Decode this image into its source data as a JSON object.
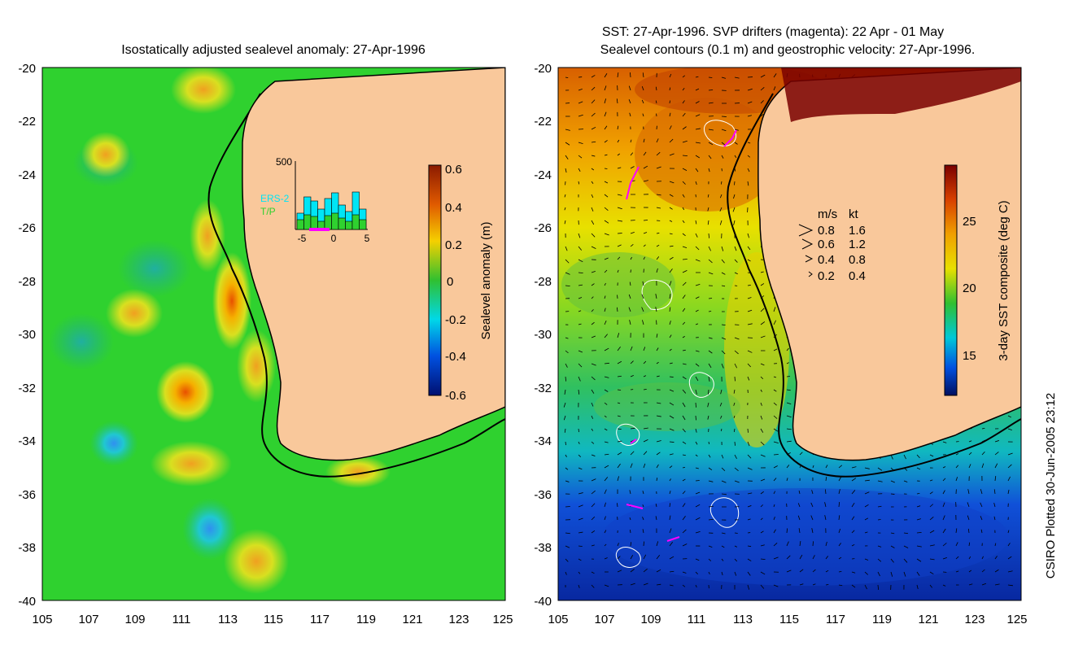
{
  "left_panel": {
    "title": "Isostatically adjusted sealevel anomaly: 27-Apr-1996",
    "colorbar": {
      "label": "Sealevel anomaly (m)",
      "ticks": [
        "0.6",
        "0.4",
        "0.2",
        "0",
        "-0.2",
        "-0.4",
        "-0.6"
      ]
    },
    "inset": {
      "y_max_label": "500",
      "x_ticks": [
        "-5",
        "0",
        "5"
      ],
      "legend": [
        {
          "label": "ERS-2",
          "color": "#00e5f5"
        },
        {
          "label": "T/P",
          "color": "#2fd12f"
        }
      ]
    }
  },
  "right_panel": {
    "title_line1": "SST: 27-Apr-1996. SVP drifters (magenta): 22 Apr - 01 May",
    "title_line2": "Sealevel contours (0.1 m) and geostrophic velocity: 27-Apr-1996.",
    "colorbar": {
      "label": "3-day SST composite (deg C)",
      "ticks": [
        "25",
        "20",
        "15"
      ]
    },
    "velocity_legend": {
      "header_ms": "m/s",
      "header_kt": "kt",
      "rows": [
        {
          "ms": "0.8",
          "kt": "1.6"
        },
        {
          "ms": "0.6",
          "kt": "1.2"
        },
        {
          "ms": "0.4",
          "kt": "0.8"
        },
        {
          "ms": "0.2",
          "kt": "0.4"
        }
      ]
    }
  },
  "axes": {
    "y_ticks": [
      "-20",
      "-22",
      "-24",
      "-26",
      "-28",
      "-30",
      "-32",
      "-34",
      "-36",
      "-38",
      "-40"
    ],
    "x_ticks": [
      "105",
      "107",
      "109",
      "111",
      "113",
      "115",
      "117",
      "119",
      "121",
      "123",
      "125"
    ]
  },
  "credit": "CSIRO Plotted 30-Jun-2005 23:12",
  "colors": {
    "land": "#f9c89b",
    "anomaly_base": "#2fd12f",
    "sst_warm": "#e07a10",
    "sst_cold": "#1030c0"
  }
}
